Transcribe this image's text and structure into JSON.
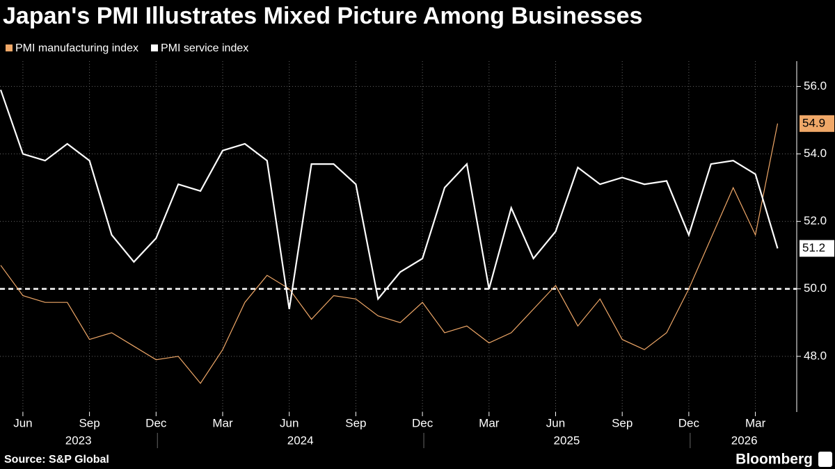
{
  "chart_data": {
    "type": "line",
    "title": "Japan's PMI Illustrates Mixed Picture Among Businesses",
    "source": "Source: S&P Global",
    "brand": "Bloomberg",
    "x": [
      "2023-05",
      "2023-06",
      "2023-07",
      "2023-08",
      "2023-09",
      "2023-10",
      "2023-11",
      "2023-12",
      "2024-01",
      "2024-02",
      "2024-03",
      "2024-04",
      "2024-05",
      "2024-06",
      "2024-07",
      "2024-08",
      "2024-09",
      "2024-10",
      "2024-11",
      "2024-12",
      "2025-01",
      "2025-02",
      "2025-03",
      "2025-04",
      "2025-05",
      "2025-06",
      "2025-07",
      "2025-08",
      "2025-09",
      "2025-10",
      "2025-11",
      "2025-12",
      "2026-01",
      "2026-02",
      "2026-03",
      "2026-04"
    ],
    "series": [
      {
        "name": "PMI manufacturing index",
        "color": "#f0a868",
        "values": [
          50.7,
          49.8,
          49.6,
          49.6,
          48.5,
          48.7,
          48.3,
          47.9,
          48.0,
          47.2,
          48.2,
          49.6,
          50.4,
          50.0,
          49.1,
          49.8,
          49.7,
          49.2,
          49.0,
          49.6,
          48.7,
          48.9,
          48.4,
          48.7,
          49.4,
          50.1,
          48.9,
          49.7,
          48.5,
          48.2,
          48.7,
          50.0,
          51.5,
          53.0,
          51.6,
          54.9
        ]
      },
      {
        "name": "PMI service index",
        "color": "#ffffff",
        "values": [
          55.9,
          54.0,
          53.8,
          54.3,
          53.8,
          51.6,
          50.8,
          51.5,
          53.1,
          52.9,
          54.1,
          54.3,
          53.8,
          49.4,
          53.7,
          53.7,
          53.1,
          49.7,
          50.5,
          50.9,
          53.0,
          53.7,
          50.0,
          52.4,
          50.9,
          51.7,
          53.6,
          53.1,
          53.3,
          53.1,
          53.2,
          51.6,
          53.7,
          53.8,
          53.4,
          51.2
        ]
      }
    ],
    "xticks": [
      {
        "value": "2023-06",
        "label": "Jun"
      },
      {
        "value": "2023-09",
        "label": "Sep"
      },
      {
        "value": "2023-12",
        "label": "Dec"
      },
      {
        "value": "2024-03",
        "label": "Mar"
      },
      {
        "value": "2024-06",
        "label": "Jun"
      },
      {
        "value": "2024-09",
        "label": "Sep"
      },
      {
        "value": "2024-12",
        "label": "Dec"
      },
      {
        "value": "2025-03",
        "label": "Mar"
      },
      {
        "value": "2025-06",
        "label": "Jun"
      },
      {
        "value": "2025-09",
        "label": "Sep"
      },
      {
        "value": "2025-12",
        "label": "Dec"
      },
      {
        "value": "2026-03",
        "label": "Mar"
      }
    ],
    "years": [
      "2023",
      "2024",
      "2025",
      "2026"
    ],
    "ylim": [
      46.35,
      56.75
    ],
    "yticks": [
      {
        "value": 48,
        "label": "48.0"
      },
      {
        "value": 50,
        "label": "50.0"
      },
      {
        "value": 52,
        "label": "52.0"
      },
      {
        "value": 54,
        "label": "54.0"
      },
      {
        "value": 56,
        "label": "56.0"
      }
    ],
    "reference_line": 50,
    "grid": true,
    "legend": "top-left"
  }
}
